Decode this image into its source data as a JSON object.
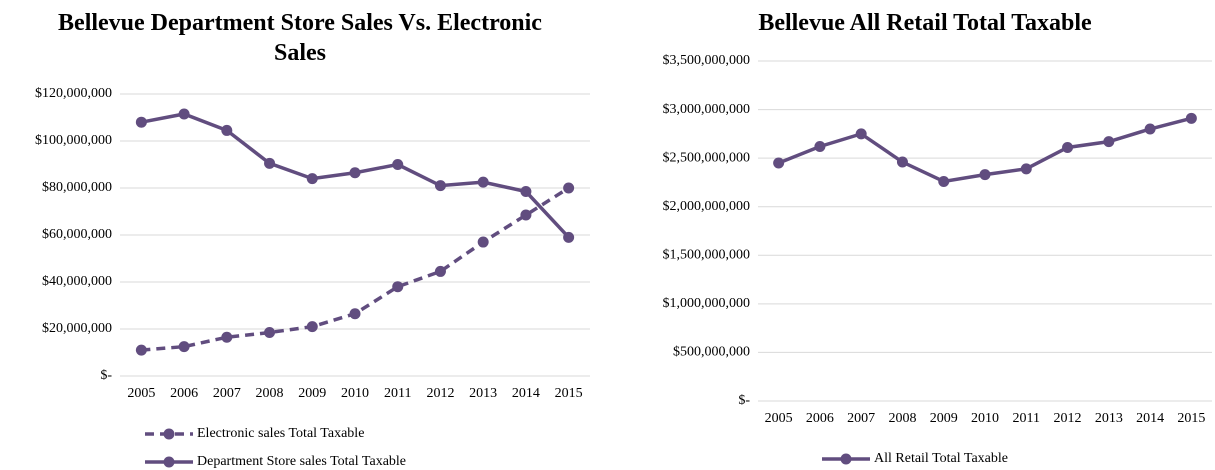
{
  "chart_data": [
    {
      "type": "line",
      "title": "Bellevue Department Store Sales Vs. Electronic Sales",
      "categories": [
        "2005",
        "2006",
        "2007",
        "2008",
        "2009",
        "2010",
        "2011",
        "2012",
        "2013",
        "2014",
        "2015"
      ],
      "series": [
        {
          "name": "Electronic sales Total Taxable",
          "color": "#614d7f",
          "line_style": "dashed",
          "values": [
            11000000,
            12500000,
            16500000,
            18500000,
            21000000,
            26500000,
            38000000,
            44500000,
            57000000,
            68500000,
            80000000
          ]
        },
        {
          "name": "Department Store sales Total Taxable",
          "color": "#614d7f",
          "line_style": "solid",
          "values": [
            108000000,
            111500000,
            104500000,
            90500000,
            84000000,
            86500000,
            90000000,
            81000000,
            82500000,
            78500000,
            59000000
          ]
        }
      ],
      "ylim": [
        0,
        120000000
      ],
      "yticks": [
        {
          "value": 0,
          "label": "$-"
        },
        {
          "value": 20000000,
          "label": "$20,000,000"
        },
        {
          "value": 40000000,
          "label": "$40,000,000"
        },
        {
          "value": 60000000,
          "label": "$60,000,000"
        },
        {
          "value": 80000000,
          "label": "$80,000,000"
        },
        {
          "value": 100000000,
          "label": "$100,000,000"
        },
        {
          "value": 120000000,
          "label": "$120,000,000"
        }
      ],
      "grid": true,
      "legend": "bottom-left"
    },
    {
      "type": "line",
      "title": "Bellevue All Retail Total Taxable",
      "categories": [
        "2005",
        "2006",
        "2007",
        "2008",
        "2009",
        "2010",
        "2011",
        "2012",
        "2013",
        "2014",
        "2015"
      ],
      "series": [
        {
          "name": "All Retail Total Taxable",
          "color": "#614d7f",
          "line_style": "solid",
          "values": [
            2450000000,
            2620000000,
            2750000000,
            2460000000,
            2260000000,
            2330000000,
            2390000000,
            2610000000,
            2670000000,
            2800000000,
            2910000000
          ]
        }
      ],
      "ylim": [
        0,
        3500000000
      ],
      "yticks": [
        {
          "value": 0,
          "label": "$-"
        },
        {
          "value": 500000000,
          "label": "$500,000,000"
        },
        {
          "value": 1000000000,
          "label": "$1,000,000,000"
        },
        {
          "value": 1500000000,
          "label": "$1,500,000,000"
        },
        {
          "value": 2000000000,
          "label": "$2,000,000,000"
        },
        {
          "value": 2500000000,
          "label": "$2,500,000,000"
        },
        {
          "value": 3000000000,
          "label": "$3,000,000,000"
        },
        {
          "value": 3500000000,
          "label": "$3,500,000,000"
        }
      ],
      "grid": true,
      "legend": "bottom"
    }
  ]
}
